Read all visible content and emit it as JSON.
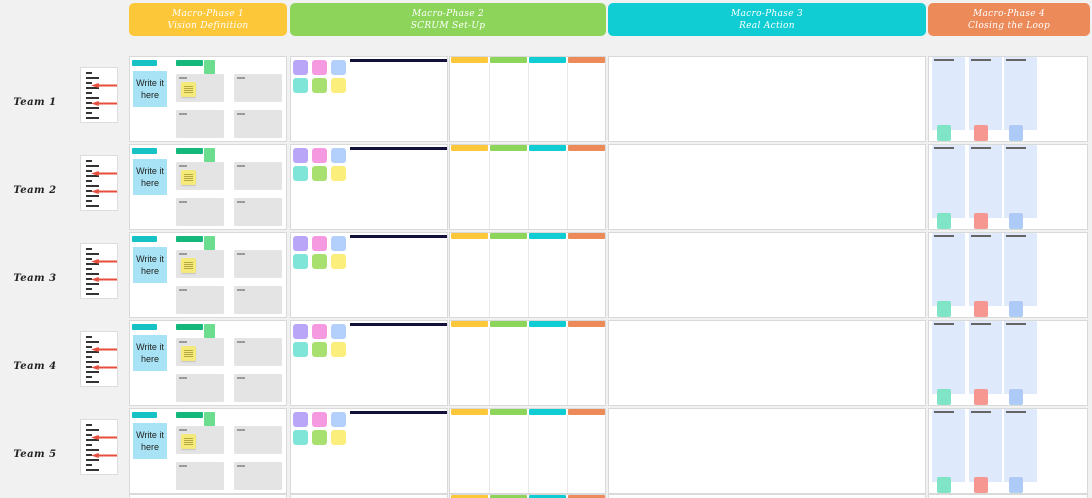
{
  "phases": [
    {
      "line1": "Macro-Phase 1",
      "line2": "Vision Definition",
      "color": "#fdc73a"
    },
    {
      "line1": "Macro-Phase 2",
      "line2": "SCRUM Set-Up",
      "color": "#8dd55a"
    },
    {
      "line1": "Macro-Phase 3",
      "line2": "Real Action",
      "color": "#0fcdd3"
    },
    {
      "line1": "Macro-Phase 4",
      "line2": "Closing the Loop",
      "color": "#ec8a5a"
    }
  ],
  "teams": [
    {
      "label": "Team 1",
      "note": "Write it here"
    },
    {
      "label": "Team 2",
      "note": "Write it here"
    },
    {
      "label": "Team 3",
      "note": "Write it here"
    },
    {
      "label": "Team 4",
      "note": "Write it here"
    },
    {
      "label": "Team 5",
      "note": "Write it here"
    }
  ],
  "colors": {
    "sticky_purple": "#b9a6f6",
    "sticky_pink": "#f59ae0",
    "sticky_blue": "#b3cffb",
    "sticky_teal": "#7fe5d8",
    "sticky_green": "#a8e070",
    "sticky_yellow": "#fbee7a",
    "kanban": [
      "#fdc73a",
      "#8dd55a",
      "#0fcdd3",
      "#ec8a5a"
    ],
    "loop_stickies": [
      "#7fe5c6",
      "#f79791",
      "#aecbf7"
    ],
    "team_tag_teal": "#17c2c4",
    "team_tag_green": "#14b87a"
  }
}
